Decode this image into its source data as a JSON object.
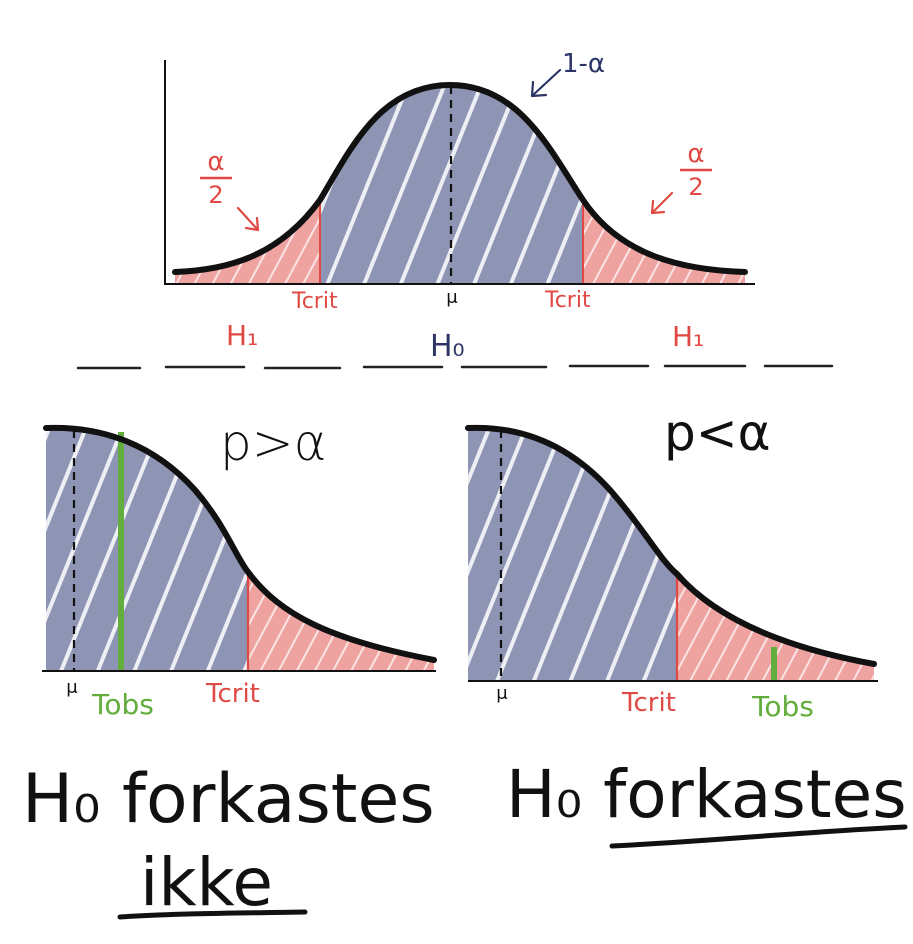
{
  "colors": {
    "accept_fill": "#8d94b4",
    "reject_fill": "#efa3a1",
    "critical_line": "#e04a44",
    "observed_line": "#62ad3c",
    "curve": "#111111",
    "label_navy": "#2c3566"
  },
  "top": {
    "one_minus_alpha": "1-α",
    "alpha_half_left": {
      "num": "α",
      "den": "2"
    },
    "alpha_half_right": {
      "num": "α",
      "den": "2"
    },
    "mu": "μ",
    "t_crit_left": "Tcrit",
    "t_crit_right": "Tcrit",
    "h1_left": "H₁",
    "h0": "H₀",
    "h1_right": "H₁"
  },
  "left_panel": {
    "condition": "p>α",
    "mu": "μ",
    "t_obs": "Tobs",
    "t_crit": "Tcrit",
    "verdict_line1": "H₀ forkastes",
    "verdict_line2": "ikke"
  },
  "right_panel": {
    "condition": "p<α",
    "mu": "μ",
    "t_crit": "Tcrit",
    "t_obs": "Tobs",
    "verdict": "H₀ forkastes"
  }
}
